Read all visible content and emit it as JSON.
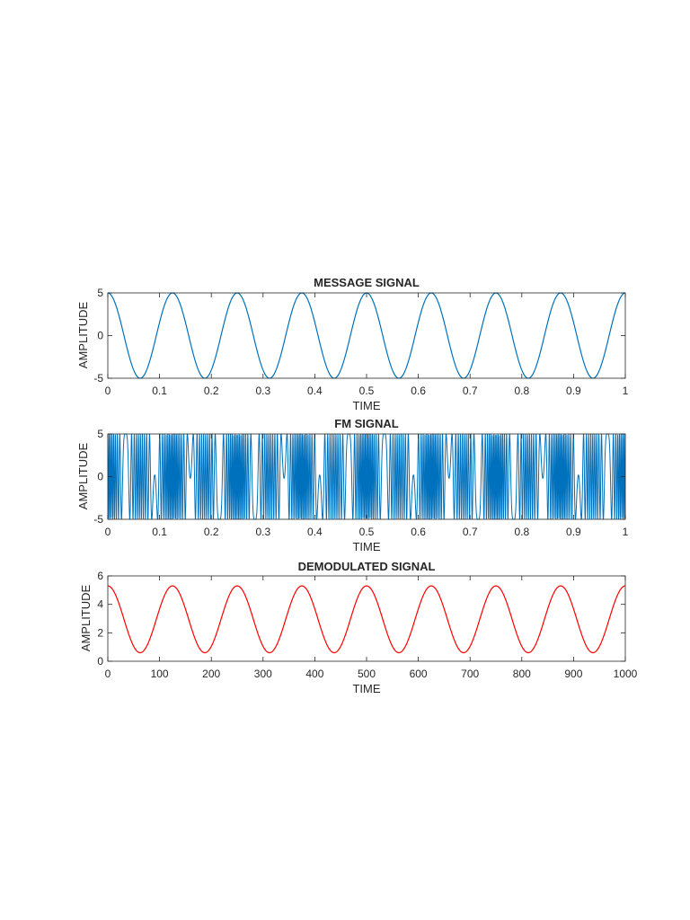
{
  "chart_data": [
    {
      "type": "line",
      "title": "MESSAGE SIGNAL",
      "xlabel": "TIME",
      "ylabel": "AMPLITUDE",
      "xlim": [
        0,
        1
      ],
      "ylim": [
        -5,
        5
      ],
      "xticks": [
        "0",
        "0.1",
        "0.2",
        "0.3",
        "0.4",
        "0.5",
        "0.6",
        "0.7",
        "0.8",
        "0.9",
        "1"
      ],
      "xtick_values": [
        0,
        0.1,
        0.2,
        0.3,
        0.4,
        0.5,
        0.6,
        0.7,
        0.8,
        0.9,
        1
      ],
      "yticks": [
        "-5",
        "0",
        "5"
      ],
      "ytick_values": [
        -5,
        0,
        5
      ],
      "color": "#0072BD",
      "signal": {
        "form": "cosine",
        "amplitude": 5,
        "offset": 0,
        "cycles": 8,
        "x_end": 1
      }
    },
    {
      "type": "line",
      "title": "FM SIGNAL",
      "xlabel": "TIME",
      "ylabel": "AMPLITUDE",
      "xlim": [
        0,
        1
      ],
      "ylim": [
        -5,
        5
      ],
      "xticks": [
        "0",
        "0.1",
        "0.2",
        "0.3",
        "0.4",
        "0.5",
        "0.6",
        "0.7",
        "0.8",
        "0.9",
        "1"
      ],
      "xtick_values": [
        0,
        0.1,
        0.2,
        0.3,
        0.4,
        0.5,
        0.6,
        0.7,
        0.8,
        0.9,
        1
      ],
      "yticks": [
        "-5",
        "0",
        "5"
      ],
      "ytick_values": [
        -5,
        0,
        5
      ],
      "color": "#0072BD",
      "signal": {
        "form": "fm",
        "amplitude": 5,
        "carrier_cycles": 50,
        "message_cycles": 8,
        "deviation_cycles": 40,
        "x_end": 1
      }
    },
    {
      "type": "line",
      "title": "DEMODULATED SIGNAL",
      "xlabel": "TIME",
      "ylabel": "AMPLITUDE",
      "xlim": [
        0,
        1000
      ],
      "ylim": [
        0,
        6
      ],
      "xticks": [
        "0",
        "100",
        "200",
        "300",
        "400",
        "500",
        "600",
        "700",
        "800",
        "900",
        "1000"
      ],
      "xtick_values": [
        0,
        100,
        200,
        300,
        400,
        500,
        600,
        700,
        800,
        900,
        1000
      ],
      "yticks": [
        "0",
        "2",
        "4",
        "6"
      ],
      "ytick_values": [
        0,
        2,
        4,
        6
      ],
      "color": "#FF0000",
      "signal": {
        "form": "cosine",
        "amplitude": 2.35,
        "offset": 2.95,
        "cycles": 8,
        "x_end": 1000
      }
    }
  ]
}
